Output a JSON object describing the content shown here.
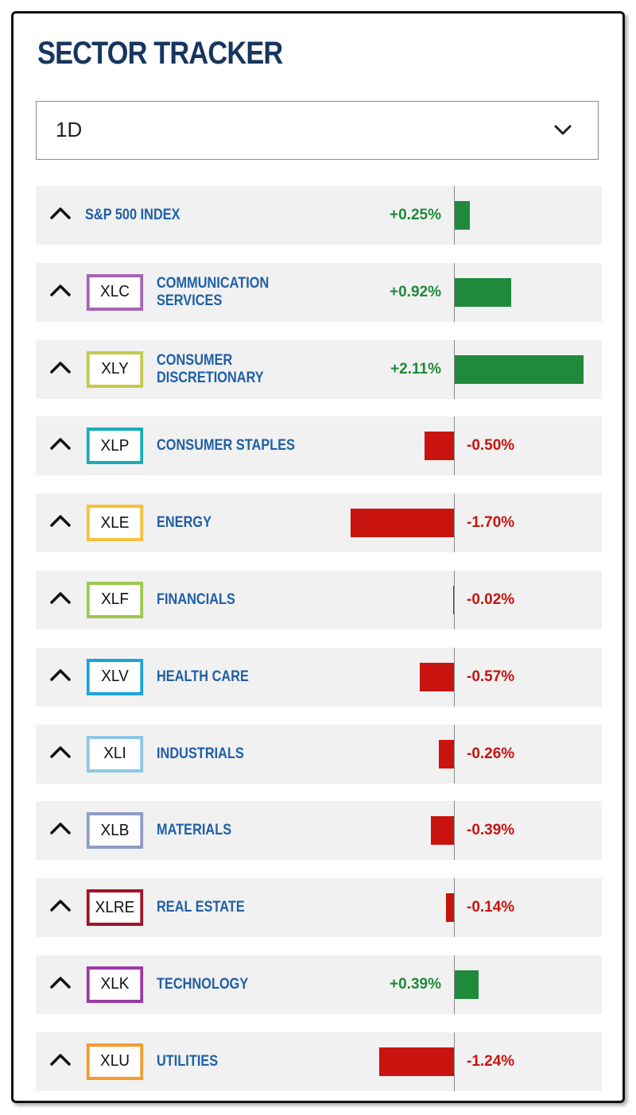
{
  "header": {
    "title": "SECTOR TRACKER"
  },
  "period_select": {
    "value": "1D"
  },
  "colors": {
    "positive": "#1e8a3a",
    "negative": "#c8130f",
    "label": "#1f5fa8",
    "title": "#16365f"
  },
  "scale_max_abs_pct": 2.11,
  "rows": [
    {
      "ticker": "",
      "name_lines": [
        "S&P 500 INDEX"
      ],
      "value": 0.25,
      "label": "+0.25%",
      "badge_color": ""
    },
    {
      "ticker": "XLC",
      "name_lines": [
        "COMMUNICATION",
        "SERVICES"
      ],
      "value": 0.92,
      "label": "+0.92%",
      "badge_color": "#a565b5"
    },
    {
      "ticker": "XLY",
      "name_lines": [
        "CONSUMER",
        "DISCRETIONARY"
      ],
      "value": 2.11,
      "label": "+2.11%",
      "badge_color": "#c3c94c"
    },
    {
      "ticker": "XLP",
      "name_lines": [
        "CONSUMER STAPLES"
      ],
      "value": -0.5,
      "label": "-0.50%",
      "badge_color": "#17aeb8"
    },
    {
      "ticker": "XLE",
      "name_lines": [
        "ENERGY"
      ],
      "value": -1.7,
      "label": "-1.70%",
      "badge_color": "#f6c23c"
    },
    {
      "ticker": "XLF",
      "name_lines": [
        "FINANCIALS"
      ],
      "value": -0.02,
      "label": "-0.02%",
      "badge_color": "#9cc84d"
    },
    {
      "ticker": "XLV",
      "name_lines": [
        "HEALTH CARE"
      ],
      "value": -0.57,
      "label": "-0.57%",
      "badge_color": "#1ba3dd"
    },
    {
      "ticker": "XLI",
      "name_lines": [
        "INDUSTRIALS"
      ],
      "value": -0.26,
      "label": "-0.26%",
      "badge_color": "#8ec6e8"
    },
    {
      "ticker": "XLB",
      "name_lines": [
        "MATERIALS"
      ],
      "value": -0.39,
      "label": "-0.39%",
      "badge_color": "#8f9bc6"
    },
    {
      "ticker": "XLRE",
      "name_lines": [
        "REAL ESTATE"
      ],
      "value": -0.14,
      "label": "-0.14%",
      "badge_color": "#a3142a"
    },
    {
      "ticker": "XLK",
      "name_lines": [
        "TECHNOLOGY"
      ],
      "value": 0.39,
      "label": "+0.39%",
      "badge_color": "#9a3aa3"
    },
    {
      "ticker": "XLU",
      "name_lines": [
        "UTILITIES"
      ],
      "value": -1.24,
      "label": "-1.24%",
      "badge_color": "#f59a2c"
    }
  ]
}
